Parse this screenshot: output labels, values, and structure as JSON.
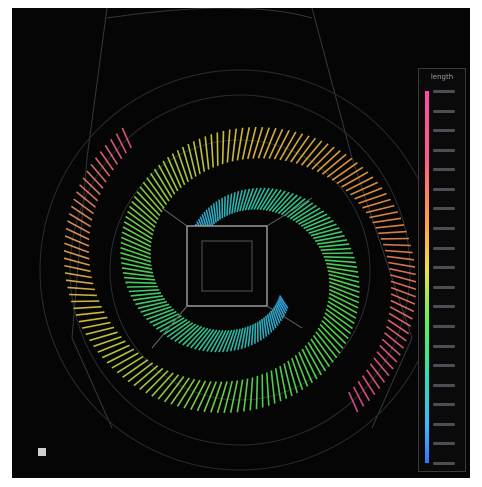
{
  "legend": {
    "title": "length",
    "colors": [
      "#ff4aa8",
      "#ff9a4a",
      "#f0e040",
      "#5ef05a",
      "#2ee0b0",
      "#3ab8ff"
    ],
    "tick_count": 20
  },
  "corner_label": "",
  "palette": {
    "background": "#050505",
    "wireframe": "#3a3d42",
    "core": "#9a9a9a"
  }
}
